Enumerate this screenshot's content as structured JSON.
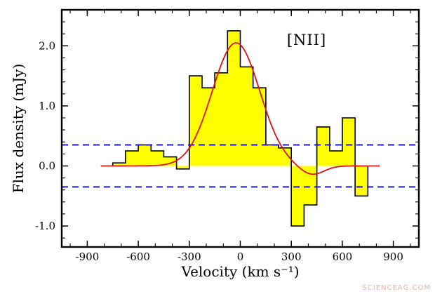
{
  "watermark": "SCIENCEAG.COM",
  "chart_data": {
    "type": "bar",
    "subtype": "step-histogram-with-fit",
    "annotation": "[NII]",
    "xlabel": "Velocity (km s⁻¹)",
    "ylabel": "Flux density (mJy)",
    "xlim": [
      -1050,
      1050
    ],
    "ylim": [
      -1.35,
      2.6
    ],
    "x_major_ticks": [
      -900,
      -600,
      -300,
      0,
      300,
      600,
      900
    ],
    "x_tick_labels": [
      "-900",
      "-600",
      "-300",
      "0",
      "300",
      "600",
      "900"
    ],
    "x_minor_step": 100,
    "y_major_ticks": [
      -1.0,
      0.0,
      1.0,
      2.0
    ],
    "y_tick_labels": [
      "-1.0",
      "0.0",
      "1.0",
      "2.0"
    ],
    "y_minor_step": 0.2,
    "grid": false,
    "legend": "none",
    "bin_width": 75,
    "bin_centers": [
      -712.5,
      -637.5,
      -562.5,
      -487.5,
      -412.5,
      -337.5,
      -262.5,
      -187.5,
      -112.5,
      -37.5,
      37.5,
      112.5,
      187.5,
      262.5,
      337.5,
      412.5,
      487.5,
      562.5,
      637.5,
      712.5
    ],
    "bin_values": [
      0.05,
      0.25,
      0.35,
      0.25,
      0.15,
      -0.05,
      1.5,
      1.3,
      1.55,
      2.25,
      1.65,
      1.3,
      0.35,
      0.3,
      -1.0,
      -0.65,
      0.65,
      0.25,
      0.8,
      -0.5
    ],
    "fit_curve": {
      "type": "gaussian",
      "amplitude": 2.05,
      "center": -25,
      "sigma": 140,
      "dip_amplitude": -0.15,
      "dip_center": 420,
      "dip_sigma": 70,
      "x_start": -820,
      "x_end": 820
    },
    "threshold_lines": [
      0.35,
      -0.35
    ],
    "colors": {
      "fill": "#ffff00",
      "outline": "#000000",
      "fit": "#dd1111",
      "threshold": "#1c1ccc",
      "frame": "#000000"
    }
  }
}
